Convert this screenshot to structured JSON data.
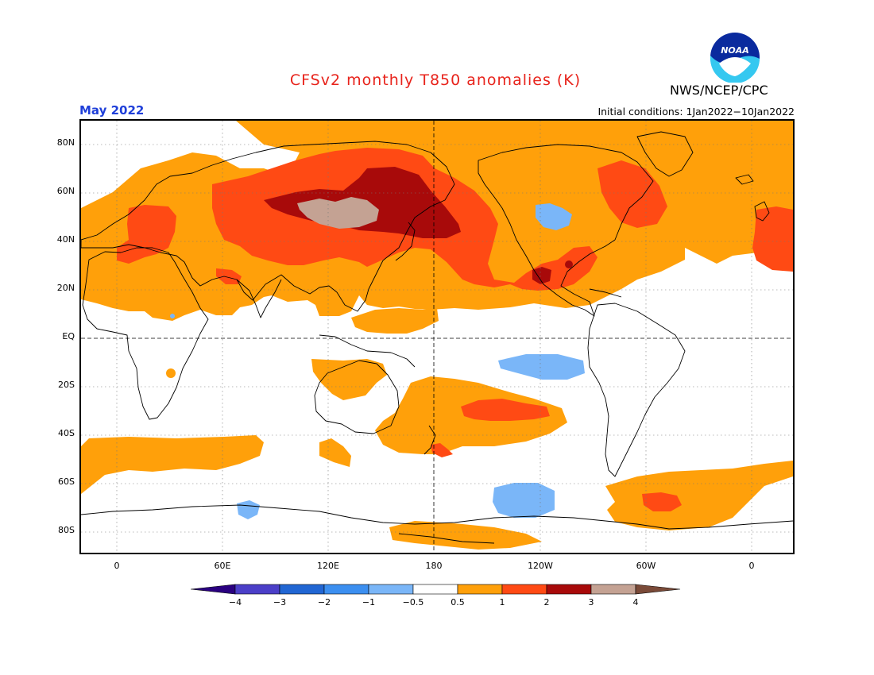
{
  "title": "CFSv2 monthly T850 anomalies (K)",
  "valid_month": "May 2022",
  "initial_conditions": "Initial conditions: 1Jan2022−10Jan2022",
  "agency": "NWS/NCEP/CPC",
  "logo_text": "NOAA",
  "map": {
    "lat_labels": [
      "80N",
      "60N",
      "40N",
      "20N",
      "EQ",
      "20S",
      "40S",
      "60S",
      "80S"
    ],
    "lon_labels": [
      "0",
      "60E",
      "120E",
      "180",
      "120W",
      "60W",
      "0"
    ],
    "reference_lines": [
      "EQ",
      "180"
    ]
  },
  "legend": {
    "unit": "K",
    "bins": [
      {
        "range": "< -4",
        "color": "#2a0080"
      },
      {
        "range": "-4 to -3",
        "color": "#4b3fc8"
      },
      {
        "range": "-3 to -2",
        "color": "#2166d3"
      },
      {
        "range": "-2 to -1",
        "color": "#3c8ff0"
      },
      {
        "range": "-1 to -0.5",
        "color": "#7ab6f8"
      },
      {
        "range": "-0.5 to 0.5",
        "color": "#ffffff"
      },
      {
        "range": "0.5 to 1",
        "color": "#ffa00a"
      },
      {
        "range": "1 to 2",
        "color": "#ff4a14"
      },
      {
        "range": "2 to 3",
        "color": "#a80a0a"
      },
      {
        "range": "3 to 4",
        "color": "#c4a293"
      },
      {
        "range": "> 4",
        "color": "#7a4a38"
      }
    ],
    "tick_labels": [
      "−4",
      "−3",
      "−2",
      "−1",
      "−0.5",
      "0.5",
      "1",
      "2",
      "3",
      "4"
    ]
  }
}
